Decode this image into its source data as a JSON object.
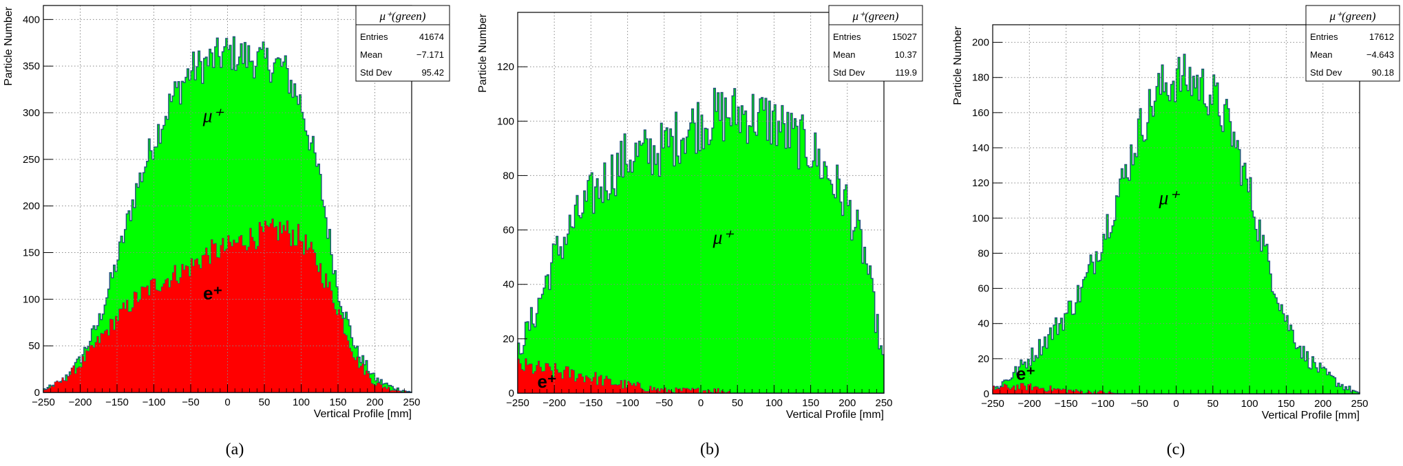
{
  "chart_data": [
    {
      "type": "area",
      "caption": "(a)",
      "xlabel": "Vertical Profile [mm]",
      "ylabel": "Particle Number",
      "xlim": [
        -250,
        250
      ],
      "ylim": [
        0,
        415
      ],
      "xticks": [
        -250,
        -200,
        -150,
        -100,
        -50,
        0,
        50,
        100,
        150,
        200,
        250
      ],
      "xtick_labels": [
        "−250",
        "−200",
        "−150",
        "−100",
        "−50",
        "0",
        "50",
        "100",
        "150",
        "200",
        "250"
      ],
      "yticks": [
        0,
        50,
        100,
        150,
        200,
        250,
        300,
        350,
        400
      ],
      "ytick_labels": [
        "0",
        "50",
        "100",
        "150",
        "200",
        "250",
        "300",
        "350",
        "400"
      ],
      "grid": true,
      "stats_box": {
        "title": "μ⁺(green)",
        "rows": [
          [
            "Entries",
            "41674"
          ],
          [
            "Mean",
            "−7.171"
          ],
          [
            "Std Dev",
            "95.42"
          ]
        ]
      },
      "annotations": [
        {
          "text": "μ⁺",
          "x": -20,
          "y": 290
        },
        {
          "text": "e⁺",
          "x": -20,
          "y": 100
        }
      ],
      "series": [
        {
          "name": "μ⁺",
          "color": "#00ff00",
          "x": [
            -250,
            -225,
            -200,
            -175,
            -150,
            -125,
            -100,
            -75,
            -50,
            -25,
            0,
            25,
            50,
            75,
            100,
            125,
            150,
            175,
            200,
            225,
            250
          ],
          "values": [
            3,
            10,
            35,
            75,
            140,
            215,
            270,
            315,
            345,
            355,
            365,
            360,
            355,
            350,
            310,
            230,
            110,
            45,
            15,
            5,
            0
          ]
        },
        {
          "name": "e⁺",
          "color": "#ff0000",
          "x": [
            -250,
            -225,
            -200,
            -175,
            -150,
            -125,
            -100,
            -75,
            -50,
            -25,
            0,
            25,
            50,
            75,
            100,
            125,
            150,
            175,
            200,
            225,
            250
          ],
          "values": [
            2,
            12,
            30,
            55,
            80,
            100,
            115,
            125,
            135,
            150,
            155,
            165,
            170,
            175,
            165,
            135,
            90,
            35,
            10,
            3,
            0
          ]
        }
      ]
    },
    {
      "type": "area",
      "caption": "(b)",
      "xlabel": "Vertical Profile [mm]",
      "ylabel": "Particle Number",
      "xlim": [
        -250,
        250
      ],
      "ylim": [
        0,
        140
      ],
      "xticks": [
        -250,
        -200,
        -150,
        -100,
        -50,
        0,
        50,
        100,
        150,
        200,
        250
      ],
      "xtick_labels": [
        "−250",
        "−200",
        "−150",
        "−100",
        "−50",
        "0",
        "50",
        "100",
        "150",
        "200",
        "250"
      ],
      "yticks": [
        0,
        20,
        40,
        60,
        80,
        100,
        120
      ],
      "ytick_labels": [
        "0",
        "20",
        "40",
        "60",
        "80",
        "100",
        "120"
      ],
      "grid": true,
      "stats_box": {
        "title": "μ⁺(green)",
        "rows": [
          [
            "Entries",
            "15027"
          ],
          [
            "Mean",
            "10.37"
          ],
          [
            "Std Dev",
            "119.9"
          ]
        ]
      },
      "annotations": [
        {
          "text": "μ⁺",
          "x": 30,
          "y": 55
        },
        {
          "text": "e⁺",
          "x": -210,
          "y": 2
        }
      ],
      "series": [
        {
          "name": "μ⁺",
          "color": "#00ff00",
          "x": [
            -250,
            -225,
            -200,
            -175,
            -150,
            -125,
            -100,
            -75,
            -50,
            -25,
            0,
            25,
            50,
            75,
            100,
            125,
            150,
            175,
            200,
            225,
            250
          ],
          "values": [
            15,
            30,
            50,
            62,
            72,
            80,
            87,
            88,
            90,
            96,
            100,
            102,
            103,
            102,
            100,
            94,
            90,
            80,
            70,
            50,
            10
          ]
        },
        {
          "name": "e⁺",
          "color": "#ff0000",
          "x": [
            -250,
            -225,
            -200,
            -175,
            -150,
            -125,
            -100,
            -75,
            -50,
            -25,
            0,
            25,
            50,
            75,
            100,
            125,
            150,
            175,
            200,
            225,
            250
          ],
          "values": [
            10,
            9,
            8,
            7,
            6,
            4,
            3,
            2,
            1,
            1,
            1,
            1,
            0,
            0,
            0,
            0,
            0,
            0,
            0,
            0,
            0
          ]
        }
      ]
    },
    {
      "type": "area",
      "caption": "(c)",
      "xlabel": "Vertical Profile [mm]",
      "ylabel": "Particle Number",
      "xlim": [
        -250,
        250
      ],
      "ylim": [
        0,
        210
      ],
      "xticks": [
        -250,
        -200,
        -150,
        -100,
        -50,
        0,
        50,
        100,
        150,
        200,
        250
      ],
      "xtick_labels": [
        "−250",
        "−200",
        "−150",
        "−100",
        "−50",
        "0",
        "50",
        "100",
        "150",
        "200",
        "250"
      ],
      "yticks": [
        0,
        20,
        40,
        60,
        80,
        100,
        120,
        140,
        160,
        180,
        200
      ],
      "ytick_labels": [
        "0",
        "20",
        "40",
        "60",
        "80",
        "100",
        "120",
        "140",
        "160",
        "180",
        "200"
      ],
      "grid": true,
      "stats_box": {
        "title": "μ⁺(green)",
        "rows": [
          [
            "Entries",
            "17612"
          ],
          [
            "Mean",
            "−4.643"
          ],
          [
            "Std Dev",
            "90.18"
          ]
        ]
      },
      "annotations": [
        {
          "text": "μ⁺",
          "x": -10,
          "y": 108
        },
        {
          "text": "e⁺",
          "x": -205,
          "y": 8
        }
      ],
      "series": [
        {
          "name": "μ⁺",
          "color": "#00ff00",
          "x": [
            -250,
            -225,
            -200,
            -175,
            -150,
            -125,
            -100,
            -75,
            -50,
            -25,
            0,
            25,
            50,
            75,
            100,
            125,
            150,
            175,
            200,
            225,
            250
          ],
          "values": [
            2,
            10,
            20,
            32,
            45,
            62,
            90,
            118,
            150,
            172,
            180,
            178,
            170,
            150,
            115,
            75,
            42,
            22,
            12,
            5,
            0
          ]
        },
        {
          "name": "e⁺",
          "color": "#ff0000",
          "x": [
            -250,
            -225,
            -200,
            -175,
            -150,
            -125,
            -100,
            -75,
            -50,
            -25,
            0,
            25,
            50,
            75,
            100,
            125,
            150,
            175,
            200,
            225,
            250
          ],
          "values": [
            3,
            4,
            4,
            3,
            2,
            1,
            1,
            0,
            0,
            0,
            0,
            0,
            0,
            0,
            0,
            0,
            0,
            0,
            0,
            0,
            0
          ]
        }
      ]
    }
  ]
}
